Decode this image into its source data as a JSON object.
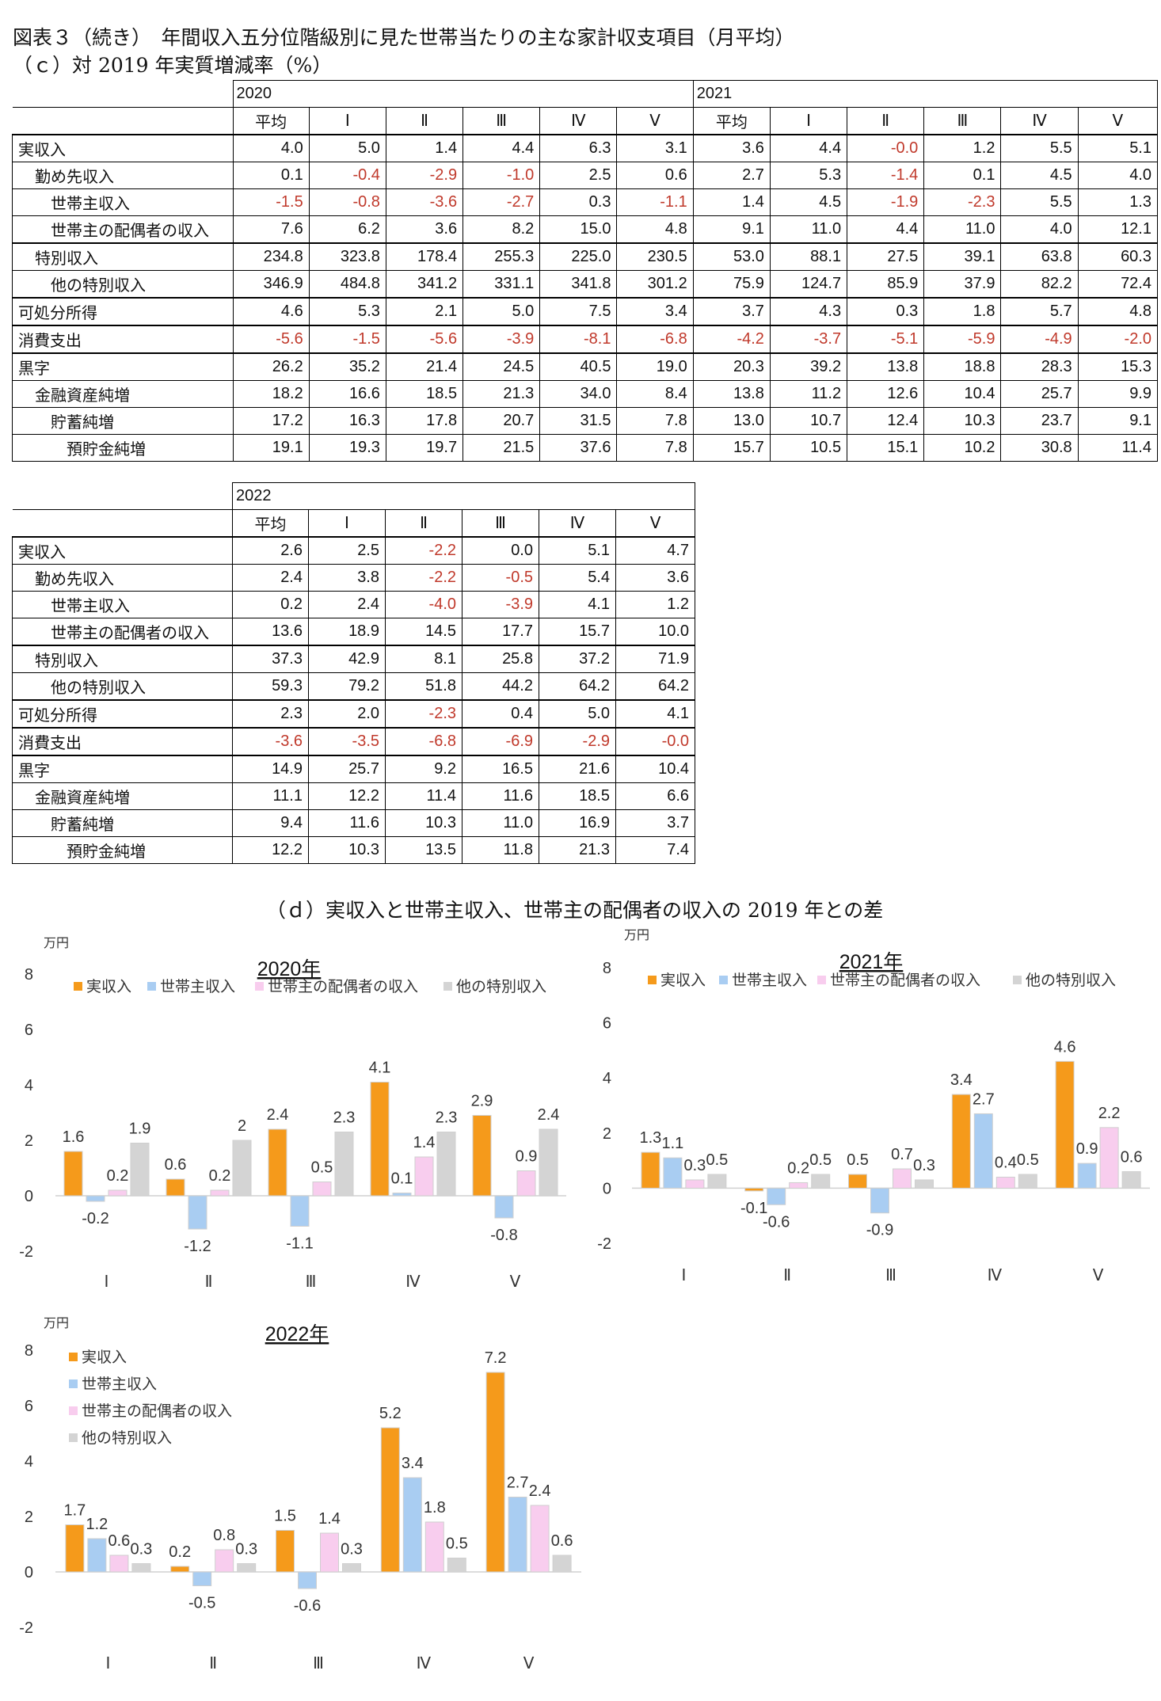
{
  "header": {
    "title": "図表３（続き）　年間収入五分位階級別に見た世帯当たりの主な家計収支項目（月平均）",
    "subtitle_c": "（ｃ）対 2019 年実質増減率（%）",
    "subtitle_d": "（ｄ）実収入と世帯主収入、世帯主の配偶者の収入の 2019 年との差"
  },
  "table1": {
    "years": [
      "2020",
      "2021"
    ],
    "cols": [
      "平均",
      "Ⅰ",
      "Ⅱ",
      "Ⅲ",
      "Ⅳ",
      "Ⅴ",
      "平均",
      "Ⅰ",
      "Ⅱ",
      "Ⅲ",
      "Ⅳ",
      "Ⅴ"
    ],
    "rows": [
      {
        "label": "実収入",
        "indent": 0,
        "values": [
          "4.0",
          "5.0",
          "1.4",
          "4.4",
          "6.3",
          "3.1",
          "3.6",
          "4.4",
          "-0.0",
          "1.2",
          "5.5",
          "5.1"
        ]
      },
      {
        "label": "勤め先収入",
        "indent": 1,
        "values": [
          "0.1",
          "-0.4",
          "-2.9",
          "-1.0",
          "2.5",
          "0.6",
          "2.7",
          "5.3",
          "-1.4",
          "0.1",
          "4.5",
          "4.0"
        ]
      },
      {
        "label": "世帯主収入",
        "indent": 2,
        "values": [
          "-1.5",
          "-0.8",
          "-3.6",
          "-2.7",
          "0.3",
          "-1.1",
          "1.4",
          "4.5",
          "-1.9",
          "-2.3",
          "5.5",
          "1.3"
        ]
      },
      {
        "label": "世帯主の配偶者の収入",
        "indent": 2,
        "values": [
          "7.6",
          "6.2",
          "3.6",
          "8.2",
          "15.0",
          "4.8",
          "9.1",
          "11.0",
          "4.4",
          "11.0",
          "4.0",
          "12.1"
        ]
      },
      {
        "label": "特別収入",
        "indent": 1,
        "values": [
          "234.8",
          "323.8",
          "178.4",
          "255.3",
          "225.0",
          "230.5",
          "53.0",
          "88.1",
          "27.5",
          "39.1",
          "63.8",
          "60.3"
        ]
      },
      {
        "label": "他の特別収入",
        "indent": 2,
        "values": [
          "346.9",
          "484.8",
          "341.2",
          "331.1",
          "341.8",
          "301.2",
          "75.9",
          "124.7",
          "85.9",
          "37.9",
          "82.2",
          "72.4"
        ]
      },
      {
        "label": "可処分所得",
        "indent": 0,
        "values": [
          "4.6",
          "5.3",
          "2.1",
          "5.0",
          "7.5",
          "3.4",
          "3.7",
          "4.3",
          "0.3",
          "1.8",
          "5.7",
          "4.8"
        ]
      },
      {
        "label": "消費支出",
        "indent": 0,
        "values": [
          "-5.6",
          "-1.5",
          "-5.6",
          "-3.9",
          "-8.1",
          "-6.8",
          "-4.2",
          "-3.7",
          "-5.1",
          "-5.9",
          "-4.9",
          "-2.0"
        ]
      },
      {
        "label": "黒字",
        "indent": 0,
        "values": [
          "26.2",
          "35.2",
          "21.4",
          "24.5",
          "40.5",
          "19.0",
          "20.3",
          "39.2",
          "13.8",
          "18.8",
          "28.3",
          "15.3"
        ]
      },
      {
        "label": "金融資産純増",
        "indent": 1,
        "values": [
          "18.2",
          "16.6",
          "18.5",
          "21.3",
          "34.0",
          "8.4",
          "13.8",
          "11.2",
          "12.6",
          "10.4",
          "25.7",
          "9.9"
        ]
      },
      {
        "label": "貯蓄純増",
        "indent": 2,
        "values": [
          "17.2",
          "16.3",
          "17.8",
          "20.7",
          "31.5",
          "7.8",
          "13.0",
          "10.7",
          "12.4",
          "10.3",
          "23.7",
          "9.1"
        ]
      },
      {
        "label": "預貯金純増",
        "indent": 3,
        "values": [
          "19.1",
          "19.3",
          "19.7",
          "21.5",
          "37.6",
          "7.8",
          "15.7",
          "10.5",
          "15.1",
          "10.2",
          "30.8",
          "11.4"
        ]
      }
    ]
  },
  "table2": {
    "years": [
      "2022"
    ],
    "cols": [
      "平均",
      "Ⅰ",
      "Ⅱ",
      "Ⅲ",
      "Ⅳ",
      "Ⅴ"
    ],
    "rows": [
      {
        "label": "実収入",
        "indent": 0,
        "values": [
          "2.6",
          "2.5",
          "-2.2",
          "0.0",
          "5.1",
          "4.7"
        ]
      },
      {
        "label": "勤め先収入",
        "indent": 1,
        "values": [
          "2.4",
          "3.8",
          "-2.2",
          "-0.5",
          "5.4",
          "3.6"
        ]
      },
      {
        "label": "世帯主収入",
        "indent": 2,
        "values": [
          "0.2",
          "2.4",
          "-4.0",
          "-3.9",
          "4.1",
          "1.2"
        ]
      },
      {
        "label": "世帯主の配偶者の収入",
        "indent": 2,
        "values": [
          "13.6",
          "18.9",
          "14.5",
          "17.7",
          "15.7",
          "10.0"
        ]
      },
      {
        "label": "特別収入",
        "indent": 1,
        "values": [
          "37.3",
          "42.9",
          "8.1",
          "25.8",
          "37.2",
          "71.9"
        ]
      },
      {
        "label": "他の特別収入",
        "indent": 2,
        "values": [
          "59.3",
          "79.2",
          "51.8",
          "44.2",
          "64.2",
          "64.2"
        ]
      },
      {
        "label": "可処分所得",
        "indent": 0,
        "values": [
          "2.3",
          "2.0",
          "-2.3",
          "0.4",
          "5.0",
          "4.1"
        ]
      },
      {
        "label": "消費支出",
        "indent": 0,
        "values": [
          "-3.6",
          "-3.5",
          "-6.8",
          "-6.9",
          "-2.9",
          "-0.0"
        ]
      },
      {
        "label": "黒字",
        "indent": 0,
        "values": [
          "14.9",
          "25.7",
          "9.2",
          "16.5",
          "21.6",
          "10.4"
        ]
      },
      {
        "label": "金融資産純増",
        "indent": 1,
        "values": [
          "11.1",
          "12.2",
          "11.4",
          "11.6",
          "18.5",
          "6.6"
        ]
      },
      {
        "label": "貯蓄純増",
        "indent": 2,
        "values": [
          "9.4",
          "11.6",
          "10.3",
          "11.0",
          "16.9",
          "3.7"
        ]
      },
      {
        "label": "預貯金純増",
        "indent": 3,
        "values": [
          "12.2",
          "10.3",
          "13.5",
          "11.8",
          "21.3",
          "7.4"
        ]
      }
    ]
  },
  "chart_data": [
    {
      "type": "bar",
      "title": "2020年",
      "ylabel": "万円",
      "ylim": [
        -2,
        8
      ],
      "yticks": [
        -2,
        0,
        2,
        4,
        6,
        8
      ],
      "categories": [
        "Ⅰ",
        "Ⅱ",
        "Ⅲ",
        "Ⅳ",
        "Ⅴ"
      ],
      "legend": "top",
      "series": [
        {
          "name": "実収入",
          "color": "#f59a1b",
          "values": [
            1.6,
            0.6,
            2.4,
            4.1,
            2.9
          ]
        },
        {
          "name": "世帯主収入",
          "color": "#a9cdf2",
          "values": [
            -0.2,
            -1.2,
            -1.1,
            0.1,
            -0.8
          ]
        },
        {
          "name": "世帯主の配偶者の収入",
          "color": "#f8cdee",
          "values": [
            0.2,
            0.2,
            0.5,
            1.4,
            0.9
          ]
        },
        {
          "name": "他の特別収入",
          "color": "#d4d4d4",
          "values": [
            1.9,
            2.0,
            2.3,
            2.3,
            2.4
          ]
        }
      ]
    },
    {
      "type": "bar",
      "title": "2021年",
      "ylabel": "万円",
      "ylim": [
        -2,
        8
      ],
      "yticks": [
        -2,
        0,
        2,
        4,
        6,
        8
      ],
      "categories": [
        "Ⅰ",
        "Ⅱ",
        "Ⅲ",
        "Ⅳ",
        "Ⅴ"
      ],
      "legend": "top",
      "series": [
        {
          "name": "実収入",
          "color": "#f59a1b",
          "values": [
            1.3,
            -0.1,
            0.5,
            3.4,
            4.6
          ]
        },
        {
          "name": "世帯主収入",
          "color": "#a9cdf2",
          "values": [
            1.1,
            -0.6,
            -0.9,
            2.7,
            0.9
          ]
        },
        {
          "name": "世帯主の配偶者の収入",
          "color": "#f8cdee",
          "values": [
            0.3,
            0.2,
            0.7,
            0.4,
            2.2
          ]
        },
        {
          "name": "他の特別収入",
          "color": "#d4d4d4",
          "values": [
            0.5,
            0.5,
            0.3,
            0.5,
            0.6
          ]
        }
      ]
    },
    {
      "type": "bar",
      "title": "2022年",
      "ylabel": "万円",
      "ylim": [
        -2,
        8
      ],
      "yticks": [
        -2,
        0,
        2,
        4,
        6,
        8
      ],
      "categories": [
        "Ⅰ",
        "Ⅱ",
        "Ⅲ",
        "Ⅳ",
        "Ⅴ"
      ],
      "legend": "top-left",
      "series": [
        {
          "name": "実収入",
          "color": "#f59a1b",
          "values": [
            1.7,
            0.2,
            1.5,
            5.2,
            7.2
          ]
        },
        {
          "name": "世帯主収入",
          "color": "#a9cdf2",
          "values": [
            1.2,
            -0.5,
            -0.6,
            3.4,
            2.7
          ]
        },
        {
          "name": "世帯主の配偶者の収入",
          "color": "#f8cdee",
          "values": [
            0.6,
            0.8,
            1.4,
            1.8,
            2.4
          ]
        },
        {
          "name": "他の特別収入",
          "color": "#d4d4d4",
          "values": [
            0.3,
            0.3,
            0.3,
            0.5,
            0.6
          ]
        }
      ]
    }
  ]
}
